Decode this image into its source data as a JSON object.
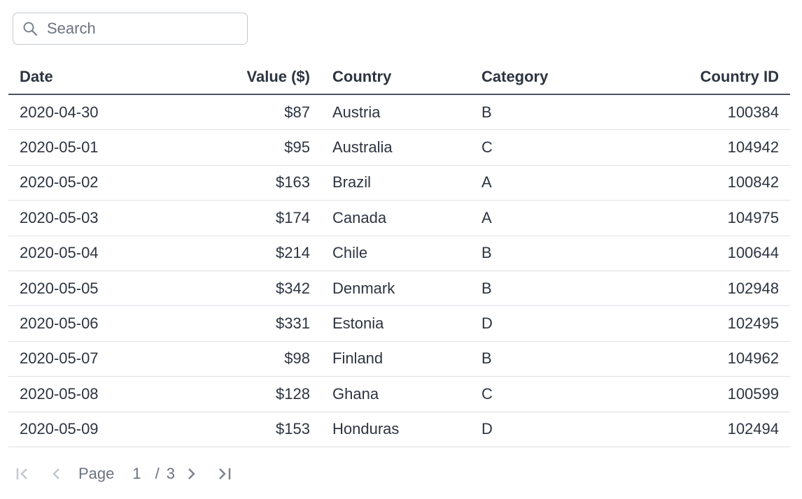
{
  "search": {
    "placeholder": "Search",
    "value": ""
  },
  "table": {
    "columns": [
      "Date",
      "Value ($)",
      "Country",
      "Category",
      "Country ID"
    ],
    "rows": [
      [
        "2020-04-30",
        "$87",
        "Austria",
        "B",
        "100384"
      ],
      [
        "2020-05-01",
        "$95",
        "Australia",
        "C",
        "104942"
      ],
      [
        "2020-05-02",
        "$163",
        "Brazil",
        "A",
        "100842"
      ],
      [
        "2020-05-03",
        "$174",
        "Canada",
        "A",
        "104975"
      ],
      [
        "2020-05-04",
        "$214",
        "Chile",
        "B",
        "100644"
      ],
      [
        "2020-05-05",
        "$342",
        "Denmark",
        "B",
        "102948"
      ],
      [
        "2020-05-06",
        "$331",
        "Estonia",
        "D",
        "102495"
      ],
      [
        "2020-05-07",
        "$98",
        "Finland",
        "B",
        "104962"
      ],
      [
        "2020-05-08",
        "$128",
        "Ghana",
        "C",
        "100599"
      ],
      [
        "2020-05-09",
        "$153",
        "Honduras",
        "D",
        "102494"
      ]
    ]
  },
  "pagination": {
    "page_label": "Page",
    "current": "1",
    "separator": "/",
    "total": "3"
  }
}
